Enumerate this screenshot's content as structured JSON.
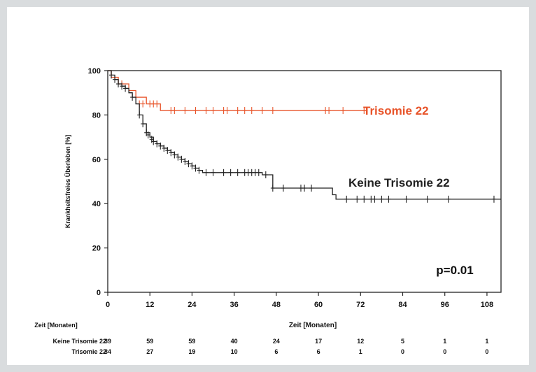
{
  "chart_data": {
    "type": "line",
    "subtype": "kaplan-meier",
    "title": "",
    "ylabel": "Krankheitsfreies Überleben [%]",
    "xlabel": "Zeit [Monaten]",
    "xlim": [
      0,
      112
    ],
    "ylim": [
      0,
      100
    ],
    "xticks": [
      0,
      12,
      24,
      36,
      48,
      60,
      72,
      84,
      96,
      108
    ],
    "yticks": [
      0,
      20,
      40,
      60,
      80,
      100
    ],
    "annotation": "p=0.01",
    "series": [
      {
        "name": "Trisomie 22",
        "color": "#e8542a",
        "steps": [
          [
            0,
            100
          ],
          [
            1,
            97
          ],
          [
            3,
            94
          ],
          [
            6,
            91
          ],
          [
            8,
            88
          ],
          [
            11,
            85
          ],
          [
            15,
            82
          ],
          [
            74,
            82
          ]
        ],
        "censored": [
          [
            4,
            94
          ],
          [
            9,
            85
          ],
          [
            10,
            85
          ],
          [
            12,
            85
          ],
          [
            13,
            85
          ],
          [
            14,
            85
          ],
          [
            18,
            82
          ],
          [
            19,
            82
          ],
          [
            22,
            82
          ],
          [
            25,
            82
          ],
          [
            28,
            82
          ],
          [
            30,
            82
          ],
          [
            33,
            82
          ],
          [
            34,
            82
          ],
          [
            37,
            82
          ],
          [
            39,
            82
          ],
          [
            41,
            82
          ],
          [
            44,
            82
          ],
          [
            47,
            82
          ],
          [
            62,
            82
          ],
          [
            63,
            82
          ],
          [
            67,
            82
          ],
          [
            73,
            82
          ]
        ]
      },
      {
        "name": "Keine Trisomie 22",
        "color": "#222222",
        "steps": [
          [
            0,
            100
          ],
          [
            1,
            98
          ],
          [
            2,
            96
          ],
          [
            3,
            94
          ],
          [
            4,
            93
          ],
          [
            5,
            92
          ],
          [
            6,
            90
          ],
          [
            7,
            88
          ],
          [
            8,
            85
          ],
          [
            9,
            80
          ],
          [
            10,
            76
          ],
          [
            11,
            72
          ],
          [
            12,
            70
          ],
          [
            13,
            68
          ],
          [
            14,
            67
          ],
          [
            15,
            66
          ],
          [
            16,
            65
          ],
          [
            17,
            64
          ],
          [
            18,
            63
          ],
          [
            19,
            62
          ],
          [
            20,
            61
          ],
          [
            21,
            60
          ],
          [
            22,
            59
          ],
          [
            23,
            58
          ],
          [
            24,
            57
          ],
          [
            25,
            56
          ],
          [
            26,
            55
          ],
          [
            27,
            54
          ],
          [
            44,
            53
          ],
          [
            47,
            47
          ],
          [
            62,
            47
          ],
          [
            64,
            44
          ],
          [
            65,
            42
          ],
          [
            112,
            42
          ]
        ],
        "censored": [
          [
            1,
            98
          ],
          [
            2,
            96
          ],
          [
            3,
            94
          ],
          [
            4,
            93
          ],
          [
            5,
            92
          ],
          [
            7,
            88
          ],
          [
            9,
            80
          ],
          [
            10,
            76
          ],
          [
            11,
            72
          ],
          [
            11.5,
            71
          ],
          [
            12.5,
            69
          ],
          [
            13,
            68
          ],
          [
            14,
            67
          ],
          [
            15,
            66
          ],
          [
            16,
            65
          ],
          [
            17,
            64
          ],
          [
            18,
            63
          ],
          [
            19,
            62
          ],
          [
            20,
            61
          ],
          [
            21,
            60
          ],
          [
            22,
            59
          ],
          [
            23,
            58
          ],
          [
            24,
            57
          ],
          [
            25,
            56
          ],
          [
            26,
            55
          ],
          [
            28,
            54
          ],
          [
            30,
            54
          ],
          [
            33,
            54
          ],
          [
            35,
            54
          ],
          [
            37,
            54
          ],
          [
            39,
            54
          ],
          [
            40,
            54
          ],
          [
            41,
            54
          ],
          [
            42,
            54
          ],
          [
            43,
            54
          ],
          [
            45,
            53
          ],
          [
            47,
            47
          ],
          [
            50,
            47
          ],
          [
            55,
            47
          ],
          [
            56,
            47
          ],
          [
            58,
            47
          ],
          [
            68,
            42
          ],
          [
            71,
            42
          ],
          [
            73,
            42
          ],
          [
            75,
            42
          ],
          [
            76,
            42
          ],
          [
            78,
            42
          ],
          [
            80,
            42
          ],
          [
            85,
            42
          ],
          [
            91,
            42
          ],
          [
            97,
            42
          ],
          [
            110,
            42
          ]
        ]
      }
    ],
    "risk_table": {
      "header": "Zeit [Monaten]",
      "times": [
        0,
        12,
        24,
        36,
        48,
        60,
        72,
        84,
        96,
        108
      ],
      "rows": [
        {
          "label": "Keine Trisomie 22",
          "counts": [
            "39",
            "59",
            "59",
            "40",
            "24",
            "17",
            "12",
            "5",
            "1",
            "1"
          ]
        },
        {
          "label": "Trisomie 22",
          "counts": [
            "34",
            "27",
            "19",
            "10",
            "6",
            "6",
            "1",
            "0",
            "0",
            "0"
          ]
        }
      ]
    }
  }
}
